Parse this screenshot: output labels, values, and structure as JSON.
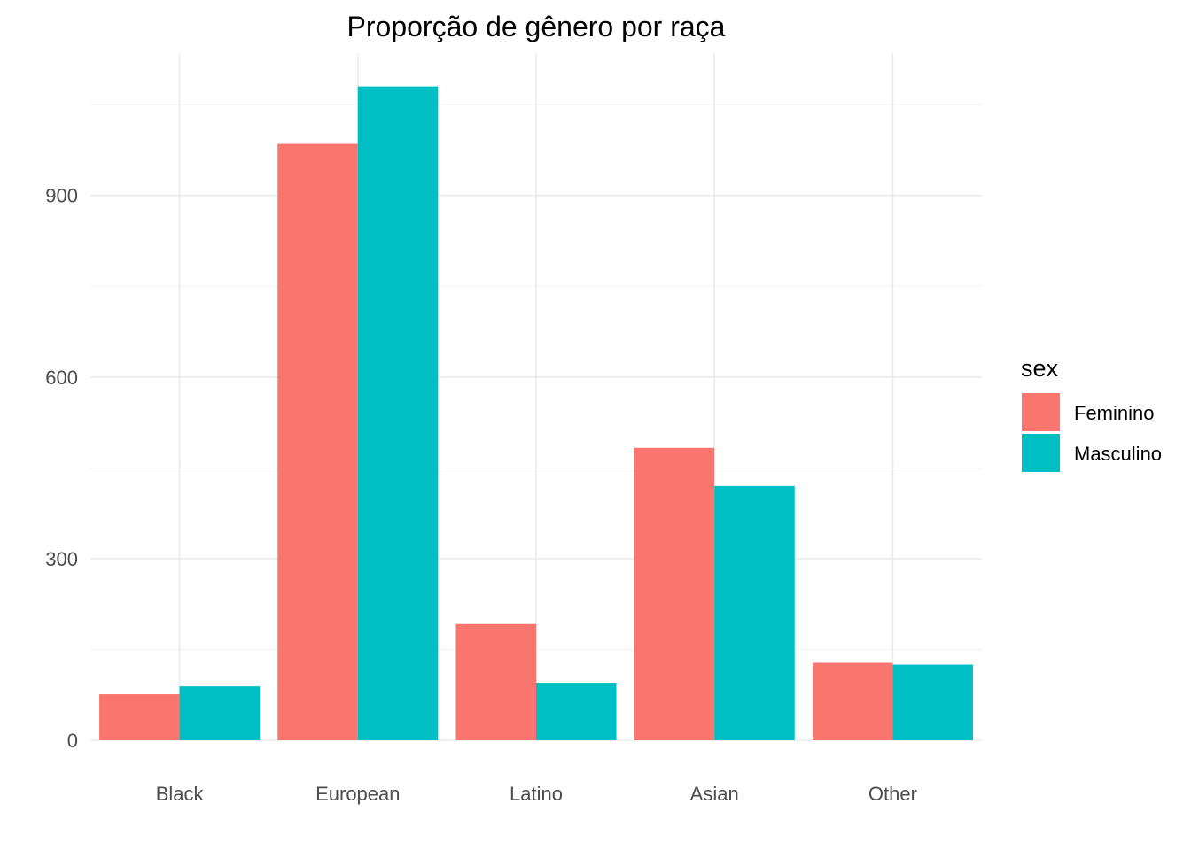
{
  "chart_data": {
    "type": "bar",
    "title": "Proporção de gênero por raça",
    "xlabel": "",
    "ylabel": "",
    "categories": [
      "Black",
      "European",
      "Latino",
      "Asian",
      "Other"
    ],
    "series": [
      {
        "name": "Feminino",
        "color": "#F8766D",
        "values": [
          76,
          985,
          192,
          483,
          128
        ]
      },
      {
        "name": "Masculino",
        "color": "#00BFC4",
        "values": [
          89,
          1080,
          95,
          420,
          125
        ]
      }
    ],
    "ylim": [
      0,
      1135
    ],
    "yticks": [
      0,
      300,
      600,
      900
    ],
    "y_tick_labels": [
      "0",
      "300",
      "600",
      "900"
    ],
    "grid": true,
    "legend": {
      "title": "sex",
      "position": "right"
    }
  }
}
